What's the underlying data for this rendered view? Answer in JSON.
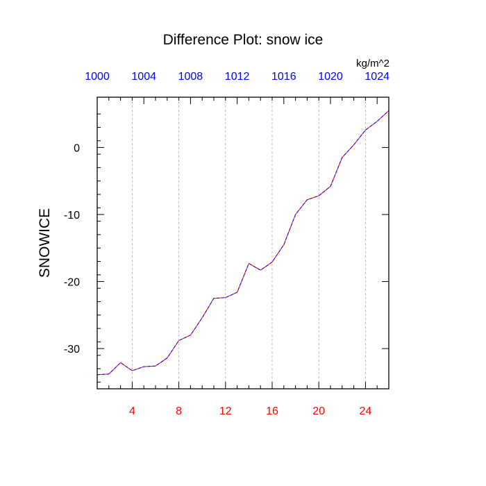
{
  "chart_data": {
    "type": "line",
    "title": "Difference Plot: snow ice",
    "ylabel": "SNOWICE",
    "top_axis_units": "kg/m^2",
    "xlim": [
      1,
      26
    ],
    "ylim": [
      -36,
      7.5
    ],
    "bottom_ticks": [
      4,
      8,
      12,
      16,
      20,
      24
    ],
    "top_ticks": [
      {
        "x": 1,
        "label": "1000"
      },
      {
        "x": 3,
        "label": "1004"
      },
      {
        "x": 5,
        "label": "1008"
      },
      {
        "x": 7,
        "label": "1012"
      },
      {
        "x": 9,
        "label": "1016"
      },
      {
        "x": 11,
        "label": "1020"
      },
      {
        "x": 13,
        "label": "1024"
      }
    ],
    "top_ticks_scale": 0.5,
    "left_ticks": [
      0,
      -10,
      -20,
      -30
    ],
    "grid_x": true,
    "series": [
      {
        "color_line": "#ff0000",
        "color_dash": "#0000ff",
        "x": [
          1,
          2,
          3,
          4,
          5,
          6,
          7,
          8,
          9,
          10,
          11,
          12,
          13,
          14,
          15,
          16,
          17,
          18,
          19,
          20,
          21,
          22,
          23,
          24,
          25,
          26
        ],
        "y": [
          -33.9,
          -33.8,
          -32.1,
          -33.3,
          -32.7,
          -32.6,
          -31.4,
          -28.8,
          -28.0,
          -25.4,
          -22.5,
          -22.4,
          -21.6,
          -17.3,
          -18.3,
          -17.1,
          -14.5,
          -10.0,
          -7.8,
          -7.2,
          -5.8,
          -1.5,
          0.4,
          2.6,
          3.9,
          5.5
        ]
      }
    ],
    "colors": {
      "bottom_tick_labels": "#ff0000",
      "top_tick_labels": "#0000ff",
      "grid": "#aaaaaa",
      "frame": "#000000"
    }
  }
}
